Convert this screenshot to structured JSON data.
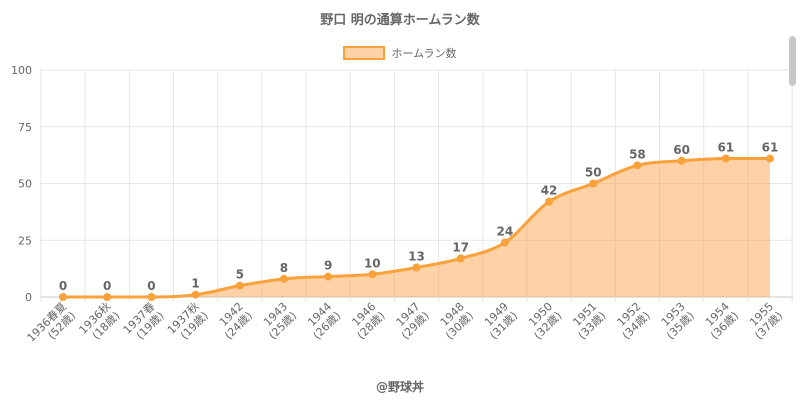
{
  "chart_data": {
    "type": "area",
    "title": "野口 明の通算ホームラン数",
    "categories": [
      [
        "1936春夏",
        "(52歳)"
      ],
      [
        "1936秋",
        "(18歳)"
      ],
      [
        "1937春",
        "(19歳)"
      ],
      [
        "1937秋",
        "(19歳)"
      ],
      [
        "1942",
        "(24歳)"
      ],
      [
        "1943",
        "(25歳)"
      ],
      [
        "1944",
        "(26歳)"
      ],
      [
        "1946",
        "(28歳)"
      ],
      [
        "1947",
        "(29歳)"
      ],
      [
        "1948",
        "(30歳)"
      ],
      [
        "1949",
        "(31歳)"
      ],
      [
        "1950",
        "(32歳)"
      ],
      [
        "1951",
        "(33歳)"
      ],
      [
        "1952",
        "(34歳)"
      ],
      [
        "1953",
        "(35歳)"
      ],
      [
        "1954",
        "(36歳)"
      ],
      [
        "1955",
        "(37歳)"
      ]
    ],
    "series": [
      {
        "name": "ホームラン数",
        "values": [
          0,
          0,
          0,
          1,
          5,
          8,
          9,
          10,
          13,
          17,
          24,
          42,
          50,
          58,
          60,
          61,
          61
        ]
      }
    ],
    "ylim": [
      0,
      100
    ],
    "yticks": [
      0,
      25,
      50,
      75,
      100
    ],
    "grid": true,
    "legend": "top"
  },
  "colors": {
    "line": "#f9a13a",
    "fill": "rgba(253,154,57,0.45)",
    "point": "#f9a13a"
  },
  "credit": "@野球丼"
}
